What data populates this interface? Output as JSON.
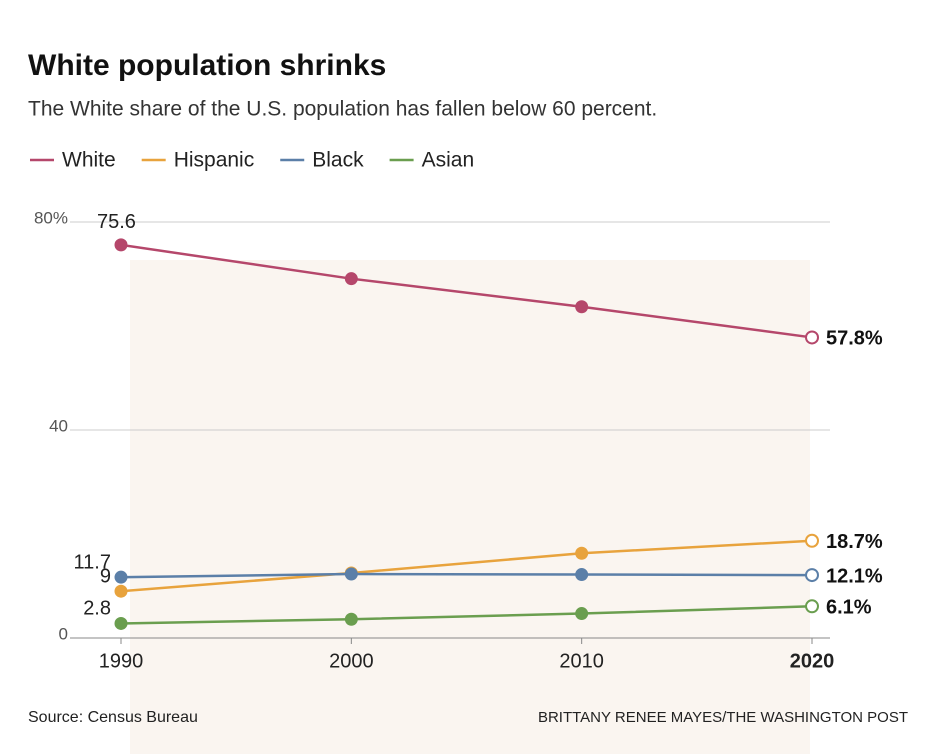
{
  "chart_data": {
    "type": "line",
    "title": "White population shrinks",
    "subtitle": "The White share of the U.S. population has fallen below 60 percent.",
    "source": "Source: Census Bureau",
    "credit": "BRITTANY RENEE MAYES/THE WASHINGTON POST",
    "x": [
      1990,
      2000,
      2010,
      2020
    ],
    "xlim": [
      1990,
      2020
    ],
    "xticks": [
      1990,
      2000,
      2010,
      2020
    ],
    "ylim": [
      0,
      80
    ],
    "yticks": [
      0,
      40,
      {
        "value": 80,
        "label": "80%"
      }
    ],
    "grid": true,
    "series": [
      {
        "name": "White",
        "color": "#b5476b",
        "values": [
          75.6,
          69.1,
          63.7,
          57.8
        ],
        "value_labels": [
          null,
          null,
          null,
          "57.8%"
        ]
      },
      {
        "name": "Hispanic",
        "color": "#e8a33d",
        "values": [
          9,
          12.5,
          16.3,
          18.7
        ],
        "value_labels": [
          null,
          null,
          null,
          "18.7%"
        ]
      },
      {
        "name": "Black",
        "color": "#5b7fa8",
        "values": [
          11.7,
          12.3,
          12.2,
          12.1
        ],
        "value_labels": [
          null,
          null,
          null,
          "12.1%"
        ]
      },
      {
        "name": "Asian",
        "color": "#6a9e4f",
        "values": [
          2.8,
          3.6,
          4.7,
          6.1
        ],
        "value_labels": [
          null,
          null,
          null,
          "6.1%"
        ]
      }
    ]
  }
}
